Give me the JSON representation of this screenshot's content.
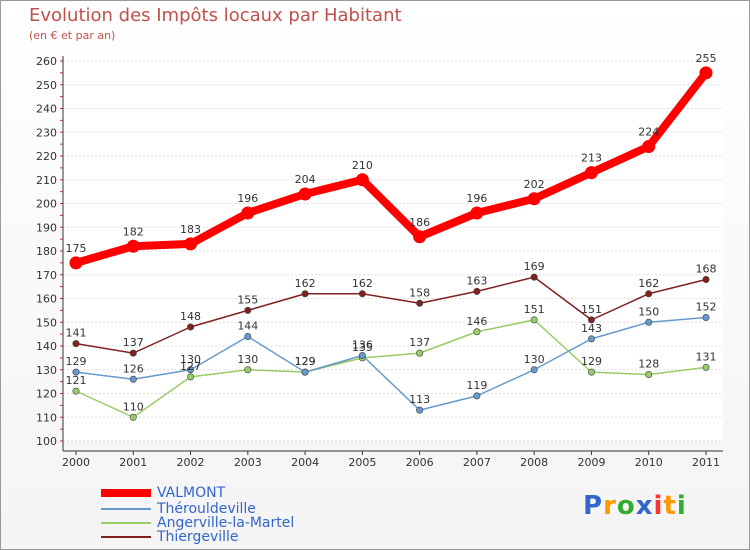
{
  "chart_data": {
    "type": "line",
    "title": "Evolution des Impôts locaux par Habitant",
    "subtitle": "(en € et par an)",
    "xlabel": "",
    "ylabel": "",
    "ylim": [
      100,
      260
    ],
    "yticks": [
      "100",
      "110",
      "120",
      "130",
      "140",
      "150",
      "160",
      "170",
      "180",
      "190",
      "200",
      "210",
      "220",
      "230",
      "240",
      "250",
      "260"
    ],
    "categories": [
      "2000",
      "2001",
      "2002",
      "2003",
      "2004",
      "2005",
      "2006",
      "2007",
      "2008",
      "2009",
      "2010",
      "2011"
    ],
    "grid": "horizontal",
    "legend_position": "bottom-left",
    "series": [
      {
        "name": "VALMONT",
        "color": "#ff0000",
        "values": [
          175,
          182,
          183,
          196,
          204,
          210,
          186,
          196,
          202,
          213,
          224,
          255
        ]
      },
      {
        "name": "Thérouldeville",
        "color": "#6699cc",
        "values": [
          129,
          126,
          130,
          144,
          129,
          136,
          113,
          119,
          130,
          143,
          150,
          152
        ]
      },
      {
        "name": "Angerville-la-Martel",
        "color": "#99cc66",
        "values": [
          121,
          110,
          127,
          130,
          129,
          135,
          137,
          146,
          151,
          129,
          128,
          131
        ]
      },
      {
        "name": "Thiergeville",
        "color": "#802020",
        "values": [
          141,
          137,
          148,
          155,
          162,
          162,
          158,
          163,
          169,
          151,
          162,
          168
        ]
      }
    ]
  },
  "logo": {
    "letters": [
      "P",
      "r",
      "o",
      "x",
      "i",
      "t",
      "i"
    ],
    "colors": [
      "#3366cc",
      "#ff9900",
      "#33aa33",
      "#3366cc",
      "#ff3333",
      "#ff9900",
      "#33aa33"
    ]
  }
}
